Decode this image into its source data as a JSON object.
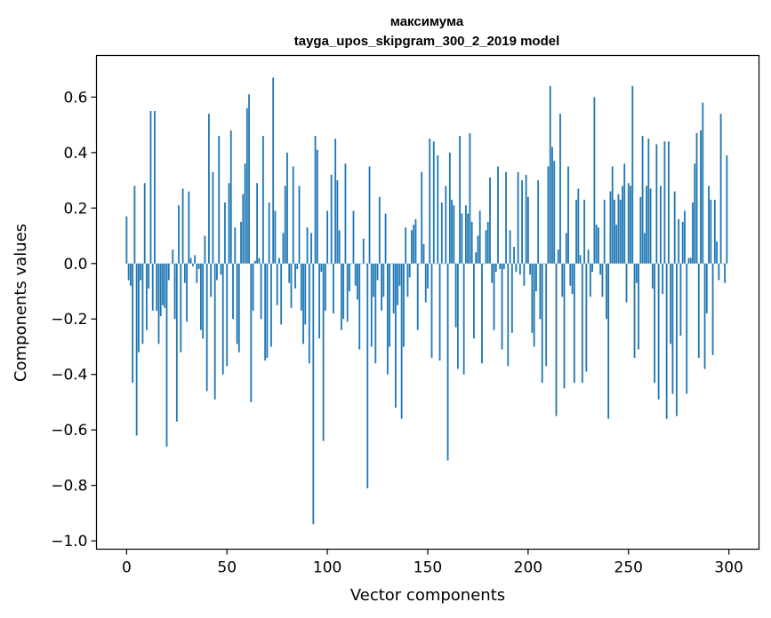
{
  "chart_data": {
    "type": "bar",
    "title": "максимума",
    "subtitle": "tayga_upos_skipgram_300_2_2019 model",
    "xlabel": "Vector components",
    "ylabel": "Components values",
    "xlim": [
      -15,
      315
    ],
    "ylim": [
      -1.03,
      0.75
    ],
    "xticks": [
      0,
      50,
      100,
      150,
      200,
      250,
      300
    ],
    "xtick_labels": [
      "0",
      "50",
      "100",
      "150",
      "200",
      "250",
      "300"
    ],
    "yticks": [
      -1.0,
      -0.8,
      -0.6,
      -0.4,
      -0.2,
      0.0,
      0.2,
      0.4,
      0.6
    ],
    "ytick_labels": [
      "−1.0",
      "−0.8",
      "−0.6",
      "−0.4",
      "−0.2",
      "0.0",
      "0.2",
      "0.4",
      "0.6"
    ],
    "grid": false,
    "legend": "none",
    "bar_color": "#1f77b4",
    "x_start": 0,
    "values": [
      0.17,
      -0.06,
      -0.08,
      -0.43,
      0.28,
      -0.62,
      -0.32,
      -0.06,
      -0.29,
      0.29,
      -0.24,
      -0.09,
      0.55,
      -0.17,
      0.55,
      -0.17,
      -0.29,
      -0.19,
      -0.15,
      -0.16,
      -0.66,
      -0.06,
      0.0,
      0.05,
      -0.2,
      -0.57,
      0.21,
      -0.32,
      0.27,
      -0.07,
      -0.21,
      0.26,
      0.02,
      -0.01,
      0.03,
      -0.07,
      -0.02,
      -0.24,
      -0.27,
      0.1,
      -0.46,
      0.54,
      -0.12,
      0.33,
      -0.49,
      -0.06,
      0.46,
      -0.04,
      -0.4,
      0.22,
      -0.37,
      0.29,
      0.48,
      -0.2,
      0.13,
      -0.29,
      -0.32,
      0.15,
      0.25,
      0.36,
      0.56,
      0.61,
      -0.5,
      -0.17,
      0.01,
      0.29,
      0.02,
      -0.2,
      0.46,
      -0.35,
      -0.34,
      0.22,
      -0.3,
      0.67,
      0.19,
      -0.15,
      0.02,
      -0.22,
      0.11,
      0.28,
      0.4,
      -0.07,
      -0.16,
      0.35,
      -0.09,
      -0.02,
      0.28,
      -0.17,
      -0.29,
      -0.22,
      0.13,
      -0.36,
      0.11,
      -0.94,
      0.46,
      0.41,
      -0.27,
      -0.03,
      -0.64,
      -0.17,
      0.19,
      0.0,
      0.32,
      -0.18,
      0.45,
      0.3,
      0.12,
      -0.24,
      -0.2,
      0.36,
      -0.21,
      -0.1,
      0.0,
      0.19,
      -0.08,
      -0.13,
      -0.31,
      0.0,
      0.09,
      0.0,
      -0.81,
      0.35,
      -0.3,
      -0.12,
      -0.36,
      -0.06,
      0.24,
      -0.17,
      -0.12,
      0.18,
      -0.4,
      -0.3,
      0.0,
      -0.18,
      -0.52,
      -0.15,
      -0.08,
      -0.56,
      -0.3,
      0.13,
      -0.12,
      -0.05,
      0.12,
      0.14,
      0.16,
      -0.24,
      0.0,
      0.33,
      0.07,
      -0.14,
      -0.09,
      0.45,
      -0.34,
      0.44,
      0.0,
      0.39,
      -0.35,
      0.22,
      0.0,
      0.28,
      -0.71,
      0.4,
      0.23,
      0.21,
      -0.23,
      -0.38,
      0.46,
      0.18,
      -0.4,
      0.21,
      0.18,
      0.47,
      0.15,
      -0.27,
      0.04,
      0.1,
      0.19,
      -0.36,
      0.0,
      0.12,
      0.15,
      0.31,
      -0.07,
      -0.24,
      -0.03,
      0.35,
      -0.02,
      -0.31,
      -0.02,
      0.33,
      -0.37,
      0.12,
      -0.25,
      0.06,
      -0.03,
      0.33,
      -0.04,
      0.3,
      -0.08,
      0.32,
      0.24,
      -0.04,
      -0.25,
      -0.3,
      -0.1,
      0.3,
      -0.2,
      -0.43,
      0.0,
      -0.37,
      0.35,
      0.64,
      0.42,
      0.37,
      -0.55,
      0.05,
      0.54,
      -0.12,
      -0.45,
      0.11,
      0.35,
      -0.08,
      -0.11,
      -0.43,
      0.23,
      0.27,
      0.03,
      -0.43,
      0.23,
      -0.39,
      0.05,
      -0.12,
      -0.03,
      0.6,
      0.14,
      0.13,
      -0.04,
      -0.12,
      0.23,
      -0.2,
      -0.56,
      0.26,
      0.35,
      0.23,
      0.14,
      0.25,
      0.23,
      0.28,
      0.36,
      -0.14,
      0.29,
      0.28,
      0.64,
      -0.34,
      -0.07,
      -0.31,
      0.24,
      0.46,
      0.11,
      0.28,
      0.45,
      0.27,
      -0.09,
      -0.43,
      0.43,
      -0.49,
      0.28,
      -0.11,
      0.44,
      -0.56,
      0.44,
      -0.29,
      -0.47,
      0.26,
      -0.55,
      0.16,
      -0.26,
      0.15,
      0.19,
      -0.47,
      0.02,
      0.02,
      0.22,
      0.36,
      0.47,
      -0.34,
      0.48,
      0.58,
      -0.38,
      -0.18,
      0.28,
      0.23,
      -0.33,
      0.23,
      0.08,
      -0.06,
      0.54,
      0.0,
      -0.07,
      0.39
    ]
  }
}
